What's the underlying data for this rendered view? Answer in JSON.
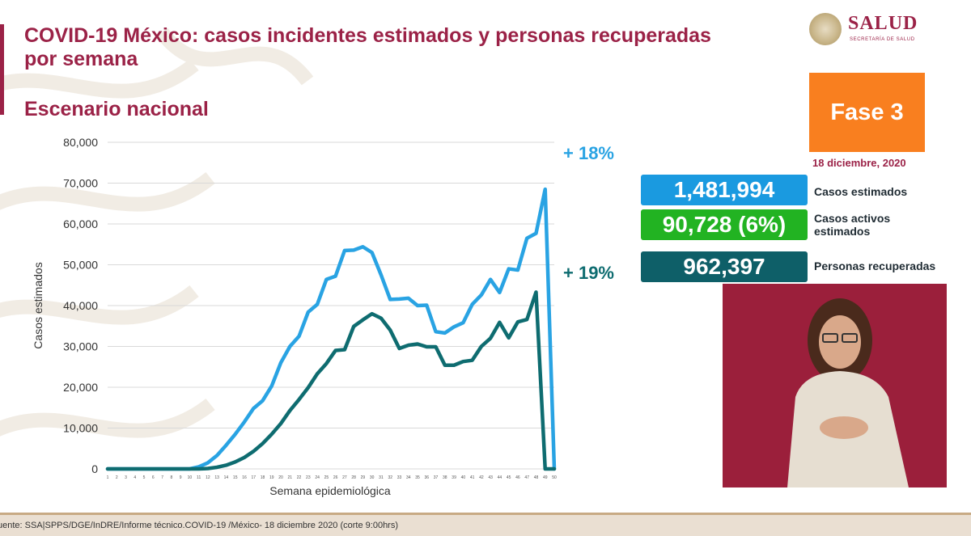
{
  "header": {
    "title": "COVID-19 México: casos incidentes estimados y personas recuperadas por semana",
    "subtitle": "Escenario nacional"
  },
  "logo": {
    "name": "SALUD",
    "sub": "SECRETARÍA DE SALUD"
  },
  "phase": {
    "label": "Fase 3",
    "color": "#f97f1f"
  },
  "date": "18 diciembre, 2020",
  "stats": [
    {
      "value": "1,481,994",
      "label": "Casos estimados",
      "color": "#1a9ae0"
    },
    {
      "value": "90,728 (6%)",
      "label": "Casos activos estimados",
      "color": "#22b322"
    },
    {
      "value": "962,397",
      "label": "Personas recuperadas",
      "color": "#0e5f68"
    }
  ],
  "source": "uente: SSA|SPPS/DGE/InDRE/Informe técnico.COVID-19 /México- 18 diciembre 2020 (corte 9:00hrs)",
  "chart_data": {
    "type": "line",
    "ylabel": "Casos estimados",
    "xlabel": "Semana epidemiológica",
    "ylim": [
      0,
      80000
    ],
    "yticks": [
      0,
      10000,
      20000,
      30000,
      40000,
      50000,
      60000,
      70000,
      80000
    ],
    "ytick_labels": [
      "0",
      "10,000",
      "20,000",
      "30,000",
      "40,000",
      "50,000",
      "60,000",
      "70,000",
      "80,000"
    ],
    "x": [
      1,
      2,
      3,
      4,
      5,
      6,
      7,
      8,
      9,
      10,
      11,
      12,
      13,
      14,
      15,
      16,
      17,
      18,
      19,
      20,
      21,
      22,
      23,
      24,
      25,
      26,
      27,
      28,
      29,
      30,
      31,
      32,
      33,
      34,
      35,
      36,
      37,
      38,
      39,
      40,
      41,
      42,
      43,
      44,
      45,
      46,
      47,
      48,
      49,
      50
    ],
    "grid": true,
    "series": [
      {
        "color": "#29a3e3",
        "annotation": "+ 18%",
        "values": [
          0,
          0,
          0,
          0,
          0,
          0,
          0,
          0,
          0,
          0,
          500,
          1500,
          3300,
          5800,
          8500,
          11500,
          14800,
          16700,
          20300,
          26000,
          30000,
          32500,
          38400,
          40300,
          46400,
          47200,
          53500,
          53600,
          54400,
          53000,
          47500,
          41500,
          41600,
          41800,
          40000,
          40100,
          33600,
          33300,
          34800,
          35800,
          40300,
          42600,
          46400,
          43200,
          49000,
          48700,
          56500,
          57700,
          68500,
          0
        ]
      },
      {
        "color": "#0e6c70",
        "annotation": "+ 19%",
        "values": [
          0,
          0,
          0,
          0,
          0,
          0,
          0,
          0,
          0,
          0,
          0,
          100,
          400,
          900,
          1700,
          2800,
          4300,
          6200,
          8500,
          11100,
          14300,
          17000,
          19900,
          23300,
          25800,
          29000,
          29200,
          34900,
          36500,
          38000,
          36900,
          34000,
          29500,
          30300,
          30600,
          29900,
          29900,
          25400,
          25400,
          26300,
          26600,
          30000,
          32000,
          35900,
          32100,
          36000,
          36600,
          43300,
          0,
          0
        ]
      }
    ]
  }
}
